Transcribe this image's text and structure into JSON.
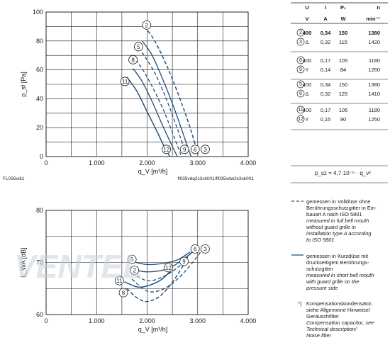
{
  "charts_meta": {
    "top_left_footnote": "FL035vdi1",
    "top_right_footnote": "fl035vdq2c3sk001/fl035vdw2c3sk001",
    "formula": "p_sz = 4,7·10⁻⁶ · q_v²",
    "watermark": "VENTEL"
  },
  "table": {
    "headers": [
      "U",
      "I",
      "P₁",
      "n"
    ],
    "units": [
      "V",
      "A",
      "W",
      "min⁻¹"
    ],
    "groups": [
      [
        {
          "id": "2",
          "u": "400",
          "conn": "",
          "i": "0,34",
          "p": "150",
          "n": "1380",
          "bold": true
        },
        {
          "id": "3",
          "u": "",
          "conn": "Δ",
          "i": "0,32",
          "p": "115",
          "n": "1420",
          "bold": false
        }
      ],
      [
        {
          "id": "8",
          "u": "400",
          "conn": "",
          "i": "0,17",
          "p": "105",
          "n": "1180",
          "bold": false
        },
        {
          "id": "9",
          "u": "",
          "conn": "Y",
          "i": "0,14",
          "p": "84",
          "n": "1260",
          "bold": false
        }
      ],
      [
        {
          "id": "5",
          "u": "400",
          "conn": "",
          "i": "0,34",
          "p": "150",
          "n": "1380",
          "bold": false
        },
        {
          "id": "6",
          "u": "",
          "conn": "Δ",
          "i": "0,32",
          "p": "125",
          "n": "1410",
          "bold": false
        }
      ],
      [
        {
          "id": "11",
          "u": "400",
          "conn": "",
          "i": "0,17",
          "p": "105",
          "n": "1180",
          "bold": false
        },
        {
          "id": "12",
          "u": "",
          "conn": "Y",
          "i": "0,15",
          "p": "90",
          "n": "1250",
          "bold": false
        }
      ]
    ]
  },
  "legend": {
    "dashed_de": [
      "gemessen in Volldüse ohne",
      "Berührungsschutzgitter in Ein-",
      "bauart A nach ISO 5801"
    ],
    "dashed_en": [
      "measured in full bell mouth",
      "without guard grille in",
      "installation type A according",
      "to ISO 5801"
    ],
    "solid_de": [
      "gemessen in Kurzdüse mit",
      "druckseitigem Berührungs-",
      "schutzgitter"
    ],
    "solid_en": [
      "measured in short bell mouth",
      "with guard grille on the",
      "pressure side"
    ],
    "note_marker": "*)",
    "note_de": [
      "Kompensationskondensator,",
      "siehe Allgemeine Hinweise/",
      "Geräuschfilter"
    ],
    "note_en": [
      "Compensation capacitor, see",
      "Technical description/",
      "Noise filter"
    ]
  },
  "colors": {
    "curve": "#1f4e79",
    "ink": "#1a1a1a",
    "watermark": "#c9d3dc"
  },
  "chart_data": [
    {
      "type": "line",
      "xlabel": "q_V [m³/h]",
      "ylabel": "p_sf [Pa]",
      "xlim": [
        0,
        4000
      ],
      "ylim": [
        0,
        100
      ],
      "xticks": [
        "0",
        "1.000",
        "2.000",
        "3.000",
        "4.000"
      ],
      "yticks": [
        "0",
        "20",
        "40",
        "60",
        "80",
        "100"
      ],
      "grid": true,
      "series": [
        {
          "name": "2",
          "style": "dashed",
          "label_at": [
            1990,
            91
          ],
          "x": [
            1950,
            2150,
            2400,
            2650,
            2850,
            3020
          ],
          "y": [
            90,
            80,
            62,
            40,
            20,
            0
          ]
        },
        {
          "name": "3",
          "style": "dashed",
          "label_at": [
            3150,
            5
          ],
          "x": [
            1950,
            2150,
            2400,
            2650,
            2850,
            3020
          ],
          "y": [
            90,
            80,
            62,
            40,
            20,
            0
          ]
        },
        {
          "name": "5",
          "style": "solid",
          "label_at": [
            1830,
            76
          ],
          "x": [
            1900,
            2100,
            2350,
            2550,
            2750,
            2870
          ],
          "y": [
            80,
            70,
            50,
            32,
            12,
            0
          ]
        },
        {
          "name": "6",
          "style": "dashed",
          "label_at": [
            2950,
            5
          ],
          "x": [
            1900,
            2150,
            2400,
            2650,
            2780
          ],
          "y": [
            72,
            58,
            38,
            14,
            0
          ]
        },
        {
          "name": "8",
          "style": "dashed",
          "label_at": [
            1720,
            67
          ],
          "x": [
            1780,
            1950,
            2150,
            2350,
            2550,
            2680
          ],
          "y": [
            67,
            58,
            45,
            30,
            12,
            0
          ]
        },
        {
          "name": "9",
          "style": "solid",
          "label_at": [
            2740,
            5
          ],
          "x": [
            1720,
            1900,
            2100,
            2300,
            2500,
            2600
          ],
          "y": [
            61,
            52,
            38,
            22,
            7,
            0
          ]
        },
        {
          "name": "11",
          "style": "solid",
          "label_at": [
            1560,
            52
          ],
          "x": [
            1600,
            1800,
            2000,
            2200,
            2350,
            2450
          ],
          "y": [
            55,
            45,
            31,
            17,
            6,
            0
          ]
        },
        {
          "name": "12",
          "style": "solid",
          "label_at": [
            2380,
            5
          ],
          "x": [
            1600,
            1800,
            2000,
            2200,
            2350,
            2450
          ],
          "y": [
            55,
            45,
            31,
            17,
            6,
            0
          ]
        }
      ]
    },
    {
      "type": "line",
      "xlabel": "q_V [m³/h]",
      "ylabel": "L_WA [dB]",
      "xlim": [
        0,
        4000
      ],
      "ylim": [
        60,
        80
      ],
      "xticks": [
        "0",
        "1.000",
        "2.000",
        "3.000",
        "4.000"
      ],
      "yticks": [
        "60",
        "70",
        "80"
      ],
      "grid": true,
      "series": [
        {
          "name": "2",
          "style": "solid",
          "label_at": [
            1750,
            68.5
          ],
          "x": [
            1780,
            2000,
            2300,
            2550,
            2900
          ],
          "y": [
            68.5,
            68.2,
            68.5,
            69.5,
            72
          ]
        },
        {
          "name": "3",
          "style": "dashed",
          "label_at": [
            3150,
            72.6
          ],
          "x": [
            1700,
            2000,
            2300,
            2600,
            2900,
            3100
          ],
          "y": [
            66.8,
            64.5,
            64.8,
            66.8,
            70,
            72.6
          ]
        },
        {
          "name": "5",
          "style": "solid",
          "label_at": [
            1700,
            70.6
          ],
          "x": [
            1780,
            2000,
            2300,
            2600,
            2850
          ],
          "y": [
            70,
            69.6,
            69.8,
            70.5,
            72
          ]
        },
        {
          "name": "6",
          "style": "dashed",
          "label_at": [
            2950,
            72.6
          ],
          "x": [
            1700,
            2000,
            2300,
            2600,
            2800,
            2930
          ],
          "y": [
            68,
            66.5,
            67.2,
            69,
            71,
            72.6
          ]
        },
        {
          "name": "8",
          "style": "dashed",
          "label_at": [
            1530,
            64.2
          ],
          "x": [
            1600,
            1800,
            2000,
            2250,
            2500,
            2720
          ],
          "y": [
            65,
            63.2,
            62.5,
            63.5,
            66.2,
            69.5
          ]
        },
        {
          "name": "9",
          "style": "dashed",
          "label_at": [
            2730,
            70.2
          ],
          "x": [
            1600,
            1800,
            2000,
            2250,
            2500,
            2720
          ],
          "y": [
            65,
            63.2,
            62.5,
            63.5,
            66.2,
            69.5
          ]
        },
        {
          "name": "11",
          "style": "solid",
          "label_at": [
            1450,
            66.5
          ],
          "x": [
            1550,
            1800,
            2000,
            2250,
            2450
          ],
          "y": [
            66.3,
            65.3,
            65.5,
            66.5,
            68.2
          ]
        },
        {
          "name": "12",
          "style": "solid",
          "label_at": [
            2420,
            69
          ],
          "x": [
            1550,
            1800,
            2000,
            2250,
            2450
          ],
          "y": [
            66.3,
            65.3,
            65.5,
            66.5,
            68.2
          ]
        }
      ]
    }
  ]
}
